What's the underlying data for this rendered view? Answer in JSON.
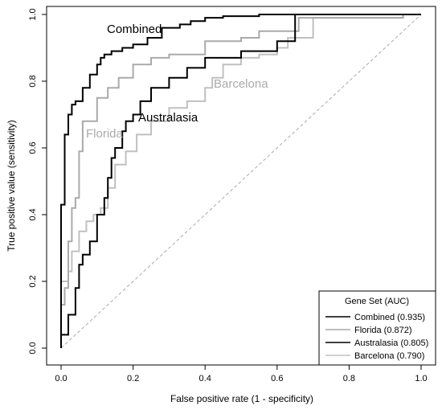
{
  "chart_data": {
    "type": "line",
    "title": "",
    "xlabel": "False positive rate (1 - specificity)",
    "ylabel": "True positive value (sensitivity)",
    "xlim": [
      0,
      1
    ],
    "ylim": [
      0,
      1
    ],
    "x_ticks": [
      "0.0",
      "0.2",
      "0.4",
      "0.6",
      "0.8",
      "1.0"
    ],
    "y_ticks": [
      "0.0",
      "0.2",
      "0.4",
      "0.6",
      "0.8",
      "1.0"
    ],
    "grid": false,
    "reference_line": {
      "from": [
        0,
        0
      ],
      "to": [
        1,
        1
      ],
      "style": "dashed"
    },
    "legend": {
      "title": "Gene Set (AUC)",
      "position": "bottom-right",
      "entries": [
        "Combined (0.935)",
        "Florida (0.872)",
        "Australasia (0.805)",
        "Barcelona (0.790)"
      ]
    },
    "series": [
      {
        "name": "Combined",
        "label": "Combined",
        "color": "#000000",
        "x": [
          0,
          0,
          0.01,
          0.01,
          0.02,
          0.02,
          0.03,
          0.03,
          0.04,
          0.04,
          0.06,
          0.06,
          0.08,
          0.08,
          0.1,
          0.1,
          0.11,
          0.11,
          0.12,
          0.12,
          0.14,
          0.14,
          0.17,
          0.17,
          0.2,
          0.2,
          0.24,
          0.24,
          0.28,
          0.28,
          0.33,
          0.33,
          0.36,
          0.36,
          0.4,
          0.4,
          0.45,
          0.45,
          0.55,
          0.55,
          0.65,
          0.65,
          1.0
        ],
        "y": [
          0,
          0.43,
          0.43,
          0.64,
          0.64,
          0.7,
          0.7,
          0.73,
          0.73,
          0.74,
          0.74,
          0.78,
          0.78,
          0.82,
          0.82,
          0.85,
          0.85,
          0.87,
          0.87,
          0.88,
          0.88,
          0.89,
          0.89,
          0.9,
          0.9,
          0.91,
          0.91,
          0.93,
          0.93,
          0.96,
          0.96,
          0.97,
          0.97,
          0.98,
          0.98,
          0.99,
          0.99,
          0.995,
          0.995,
          1.0,
          1.0,
          1.0,
          1.0
        ]
      },
      {
        "name": "Florida",
        "label": "Florida",
        "color": "#aaaaaa",
        "x": [
          0,
          0,
          0.01,
          0.01,
          0.02,
          0.02,
          0.03,
          0.03,
          0.04,
          0.04,
          0.05,
          0.05,
          0.06,
          0.06,
          0.1,
          0.1,
          0.13,
          0.13,
          0.16,
          0.16,
          0.2,
          0.2,
          0.25,
          0.25,
          0.3,
          0.3,
          0.4,
          0.4,
          0.5,
          0.5,
          0.55,
          0.55,
          0.66,
          0.66,
          0.95,
          0.95,
          1.0
        ],
        "y": [
          0,
          0.13,
          0.13,
          0.18,
          0.18,
          0.32,
          0.32,
          0.42,
          0.42,
          0.45,
          0.45,
          0.59,
          0.59,
          0.68,
          0.68,
          0.75,
          0.75,
          0.78,
          0.78,
          0.81,
          0.81,
          0.85,
          0.85,
          0.87,
          0.87,
          0.88,
          0.88,
          0.92,
          0.92,
          0.93,
          0.93,
          0.95,
          0.95,
          0.99,
          0.99,
          1.0,
          1.0
        ]
      },
      {
        "name": "Australasia",
        "label": "Australasia",
        "color": "#000000",
        "x": [
          0,
          0,
          0.02,
          0.02,
          0.04,
          0.04,
          0.05,
          0.05,
          0.06,
          0.06,
          0.08,
          0.08,
          0.1,
          0.1,
          0.12,
          0.12,
          0.13,
          0.13,
          0.14,
          0.14,
          0.15,
          0.15,
          0.17,
          0.17,
          0.18,
          0.18,
          0.2,
          0.2,
          0.22,
          0.22,
          0.25,
          0.25,
          0.3,
          0.3,
          0.35,
          0.35,
          0.4,
          0.4,
          0.5,
          0.5,
          0.6,
          0.6,
          0.65,
          0.65,
          1.0
        ],
        "y": [
          0,
          0.04,
          0.04,
          0.1,
          0.1,
          0.18,
          0.18,
          0.25,
          0.25,
          0.28,
          0.28,
          0.32,
          0.32,
          0.4,
          0.4,
          0.45,
          0.45,
          0.51,
          0.51,
          0.57,
          0.57,
          0.6,
          0.6,
          0.65,
          0.65,
          0.68,
          0.68,
          0.7,
          0.7,
          0.74,
          0.74,
          0.78,
          0.78,
          0.81,
          0.81,
          0.84,
          0.84,
          0.87,
          0.87,
          0.89,
          0.89,
          0.92,
          0.92,
          1.0,
          1.0
        ]
      },
      {
        "name": "Barcelona",
        "label": "Barcelona",
        "color": "#c0c0c0",
        "x": [
          0,
          0,
          0.02,
          0.02,
          0.03,
          0.03,
          0.05,
          0.05,
          0.07,
          0.07,
          0.09,
          0.09,
          0.11,
          0.11,
          0.13,
          0.13,
          0.15,
          0.15,
          0.18,
          0.18,
          0.21,
          0.21,
          0.25,
          0.25,
          0.3,
          0.3,
          0.35,
          0.35,
          0.4,
          0.4,
          0.42,
          0.42,
          0.45,
          0.45,
          0.5,
          0.5,
          0.55,
          0.55,
          0.6,
          0.6,
          0.63,
          0.63,
          0.7,
          0.7,
          0.95,
          0.95,
          1.0
        ],
        "y": [
          0,
          0.2,
          0.2,
          0.23,
          0.23,
          0.29,
          0.29,
          0.35,
          0.35,
          0.38,
          0.38,
          0.4,
          0.4,
          0.42,
          0.42,
          0.48,
          0.48,
          0.55,
          0.55,
          0.59,
          0.59,
          0.64,
          0.64,
          0.68,
          0.68,
          0.72,
          0.72,
          0.74,
          0.74,
          0.78,
          0.78,
          0.81,
          0.81,
          0.85,
          0.85,
          0.87,
          0.87,
          0.88,
          0.88,
          0.9,
          0.9,
          0.93,
          0.93,
          0.99,
          0.99,
          1.0,
          1.0
        ]
      }
    ]
  }
}
